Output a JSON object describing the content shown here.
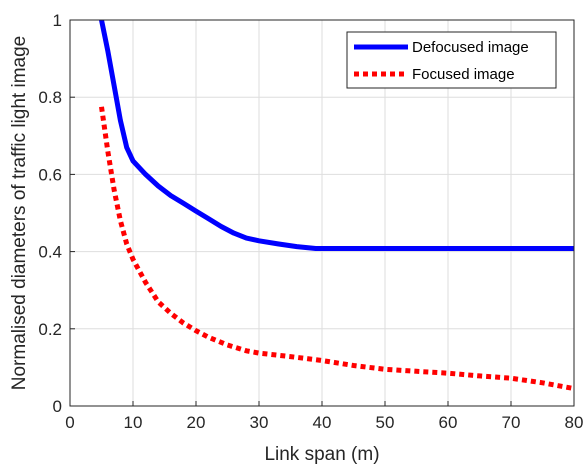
{
  "chart_data": {
    "type": "line",
    "title": "",
    "xlabel": "Link span (m)",
    "ylabel": "Normalised diameters of traffic light image",
    "xlim": [
      0,
      80
    ],
    "ylim": [
      0,
      1
    ],
    "xticks": [
      0,
      10,
      20,
      30,
      40,
      50,
      60,
      70,
      80
    ],
    "yticks": [
      0,
      0.2,
      0.4,
      0.6,
      0.8,
      1
    ],
    "x_tick_labels": [
      "0",
      "10",
      "20",
      "30",
      "40",
      "50",
      "60",
      "70",
      "80"
    ],
    "y_tick_labels": [
      "0",
      "0.2",
      "0.4",
      "0.6",
      "0.8",
      "1"
    ],
    "grid": true,
    "legend_position": "top-right",
    "series": [
      {
        "name": "Defocused image",
        "color": "#0000ff",
        "style": "solid",
        "points": [
          [
            5,
            1.0
          ],
          [
            6,
            0.92
          ],
          [
            7,
            0.83
          ],
          [
            8,
            0.74
          ],
          [
            9,
            0.67
          ],
          [
            10,
            0.635
          ],
          [
            12,
            0.6
          ],
          [
            14,
            0.57
          ],
          [
            16,
            0.545
          ],
          [
            18,
            0.525
          ],
          [
            20,
            0.505
          ],
          [
            22,
            0.485
          ],
          [
            24,
            0.465
          ],
          [
            26,
            0.448
          ],
          [
            28,
            0.435
          ],
          [
            30,
            0.428
          ],
          [
            33,
            0.42
          ],
          [
            36,
            0.413
          ],
          [
            39,
            0.408
          ],
          [
            40,
            0.408
          ],
          [
            50,
            0.408
          ],
          [
            60,
            0.408
          ],
          [
            70,
            0.408
          ],
          [
            80,
            0.408
          ]
        ]
      },
      {
        "name": "Focused image",
        "color": "#ff0000",
        "style": "dotted",
        "points": [
          [
            5,
            0.775
          ],
          [
            6,
            0.66
          ],
          [
            7,
            0.56
          ],
          [
            8,
            0.48
          ],
          [
            9,
            0.42
          ],
          [
            10,
            0.38
          ],
          [
            12,
            0.32
          ],
          [
            14,
            0.27
          ],
          [
            16,
            0.24
          ],
          [
            18,
            0.215
          ],
          [
            20,
            0.195
          ],
          [
            22,
            0.178
          ],
          [
            25,
            0.158
          ],
          [
            28,
            0.143
          ],
          [
            30,
            0.137
          ],
          [
            35,
            0.128
          ],
          [
            40,
            0.118
          ],
          [
            45,
            0.105
          ],
          [
            50,
            0.095
          ],
          [
            55,
            0.09
          ],
          [
            60,
            0.085
          ],
          [
            65,
            0.078
          ],
          [
            70,
            0.072
          ],
          [
            75,
            0.06
          ],
          [
            80,
            0.045
          ]
        ]
      }
    ]
  }
}
